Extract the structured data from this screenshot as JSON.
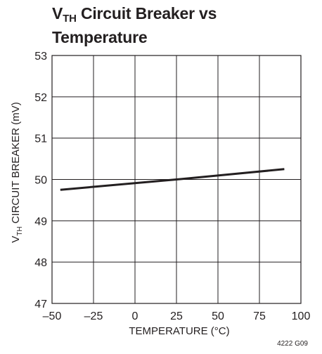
{
  "title": {
    "line1_v": "V",
    "line1_sub": "TH",
    "line1_rest": " Circuit Breaker vs",
    "line2": "Temperature"
  },
  "note": "4222 G09",
  "chart_data": {
    "type": "line",
    "title": "VTH Circuit Breaker vs Temperature",
    "xlabel": "TEMPERATURE (°C)",
    "ylabel_main": "V",
    "ylabel_sub": "TH",
    "ylabel_rest": " CIRCUIT BREAKER (mV)",
    "xlim": [
      -50,
      100
    ],
    "ylim": [
      47,
      53
    ],
    "x_ticks": [
      -50,
      -25,
      0,
      25,
      50,
      75,
      100
    ],
    "x_tick_labels": [
      "–50",
      "–25",
      "0",
      "25",
      "50",
      "75",
      "100"
    ],
    "y_ticks": [
      47,
      48,
      49,
      50,
      51,
      52,
      53
    ],
    "y_tick_labels": [
      "47",
      "48",
      "49",
      "50",
      "51",
      "52",
      "53"
    ],
    "grid": true,
    "series": [
      {
        "x": [
          -45,
          25,
          90
        ],
        "y": [
          49.75,
          50.0,
          50.25
        ],
        "color": "#231f20"
      }
    ]
  }
}
